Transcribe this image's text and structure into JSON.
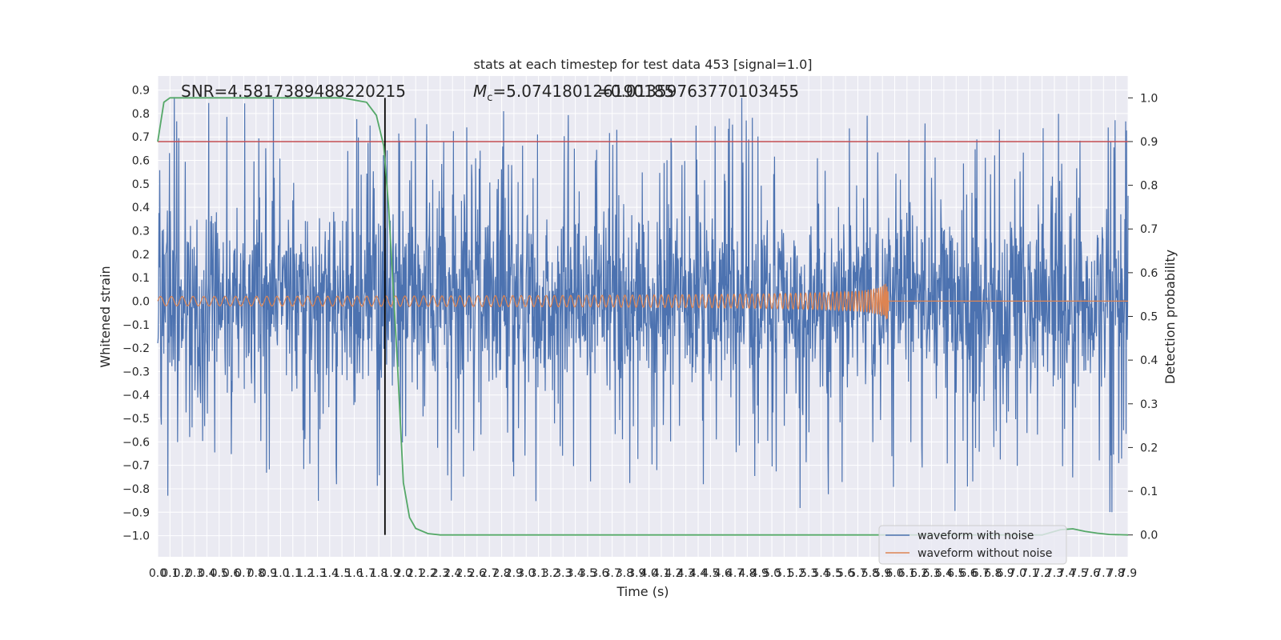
{
  "chart_data": {
    "type": "line",
    "title": "stats at each timestep for test data 453 [signal=1.0]",
    "xlabel": "Time (s)",
    "ylabel_left": "Whitened strain",
    "ylabel_right": "Detection probability",
    "xlim": [
      0.0,
      7.9
    ],
    "ylim_left": [
      -1.09,
      0.96
    ],
    "ylim_right": [
      -0.05,
      1.05
    ],
    "grid": true,
    "x_ticks": [
      "0.0",
      "0.1",
      "0.2",
      "0.3",
      "0.4",
      "0.5",
      "0.6",
      "0.7",
      "0.8",
      "0.9",
      "1.0",
      "1.1",
      "1.2",
      "1.3",
      "1.4",
      "1.5",
      "1.6",
      "1.7",
      "1.8",
      "1.9",
      "2.0",
      "2.1",
      "2.2",
      "2.3",
      "2.4",
      "2.5",
      "2.6",
      "2.7",
      "2.8",
      "2.9",
      "3.0",
      "3.1",
      "3.2",
      "3.3",
      "3.4",
      "3.5",
      "3.6",
      "3.7",
      "3.8",
      "3.9",
      "4.0",
      "4.1",
      "4.2",
      "4.3",
      "4.4",
      "4.5",
      "4.6",
      "4.7",
      "4.8",
      "4.9",
      "5.0",
      "5.1",
      "5.2",
      "5.3",
      "5.4",
      "5.5",
      "5.6",
      "5.7",
      "5.8",
      "5.9",
      "6.0",
      "6.1",
      "6.2",
      "6.3",
      "6.4",
      "6.5",
      "6.6",
      "6.7",
      "6.8",
      "6.9",
      "7.0",
      "7.1",
      "7.2",
      "7.3",
      "7.4",
      "7.5",
      "7.6",
      "7.7",
      "7.8",
      "7.9"
    ],
    "y_ticks_left": [
      "0.9",
      "0.8",
      "0.7",
      "0.6",
      "0.5",
      "0.4",
      "0.3",
      "0.2",
      "0.1",
      "0.0",
      "−0.1",
      "−0.2",
      "−0.3",
      "−0.4",
      "−0.5",
      "−0.6",
      "−0.7",
      "−0.8",
      "−0.9",
      "−1.0"
    ],
    "y_ticks_right": [
      "1.0",
      "0.9",
      "0.8",
      "0.7",
      "0.6",
      "0.5",
      "0.4",
      "0.3",
      "0.2",
      "0.1",
      "0.0"
    ],
    "annotations": {
      "snr": "SNR=4.5817389488220215",
      "mc_label": "M",
      "mc_sub": "c",
      "mc_value": "=5.074180126190185",
      "overlap_value": "=0.01359763770103455"
    },
    "threshold_probability": 0.9,
    "detection_time_s": 1.85,
    "merger_time_s": 5.95,
    "series": [
      {
        "name": "waveform with noise",
        "axis": "left",
        "color": "#4c72b0",
        "noise_amplitude": 0.5,
        "spike_range": [
          -1.0,
          0.87
        ]
      },
      {
        "name": "waveform without noise",
        "axis": "left",
        "color": "#dd8452",
        "amplitude_start": 0.02,
        "amplitude_peak": 0.1
      },
      {
        "name": "detection probability",
        "axis": "right",
        "color": "#55a868",
        "x": [
          0.0,
          0.05,
          0.1,
          0.2,
          0.3,
          0.5,
          1.0,
          1.5,
          1.7,
          1.78,
          1.84,
          1.88,
          1.95,
          2.0,
          2.05,
          2.1,
          2.2,
          2.3,
          2.5,
          3.0,
          4.0,
          5.0,
          6.0,
          7.2,
          7.35,
          7.45,
          7.55,
          7.65,
          7.75,
          7.9
        ],
        "y": [
          0.9,
          0.99,
          1.0,
          1.0,
          1.0,
          1.0,
          1.0,
          1.0,
          0.99,
          0.96,
          0.89,
          0.75,
          0.4,
          0.12,
          0.04,
          0.015,
          0.003,
          0.0,
          0.0,
          0.0,
          0.0,
          0.0,
          0.0,
          0.0,
          0.012,
          0.014,
          0.008,
          0.004,
          0.001,
          0.0
        ]
      }
    ],
    "threshold_color": "#c44e52",
    "legend": {
      "placement": "lower-right",
      "entries": [
        "waveform with noise",
        "waveform without noise"
      ]
    }
  }
}
